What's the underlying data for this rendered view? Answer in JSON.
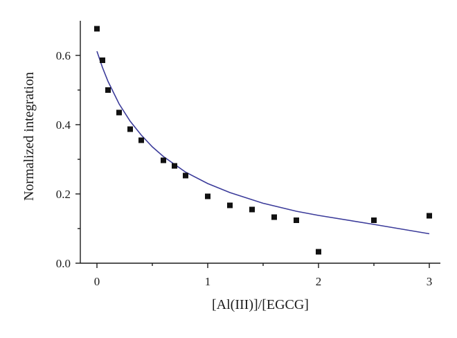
{
  "chart_data": {
    "type": "scatter",
    "title": "",
    "xlabel": "[Al(III)]/[EGCG]",
    "ylabel": "Normalized integration",
    "xlim": [
      -0.15,
      3.1
    ],
    "ylim": [
      0,
      0.7
    ],
    "x_ticks": [
      0,
      1,
      2,
      3
    ],
    "x_tick_labels": [
      "0",
      "1",
      "2",
      "3"
    ],
    "y_ticks": [
      0.0,
      0.2,
      0.4,
      0.6
    ],
    "y_tick_labels": [
      "0.0",
      "0.2",
      "0.4",
      "0.6"
    ],
    "x_minor_ticks": [
      0.5,
      1.5,
      2.5
    ],
    "y_minor_ticks": [
      0.1,
      0.3,
      0.5
    ],
    "grid": false,
    "legend": "none",
    "series": [
      {
        "kind": "points",
        "marker": "square",
        "color": "#111111",
        "x": [
          0,
          0.05,
          0.1,
          0.2,
          0.3,
          0.4,
          0.6,
          0.7,
          0.8,
          1.0,
          1.2,
          1.4,
          1.6,
          1.8,
          2.0,
          2.5,
          3.0
        ],
        "y": [
          0.677,
          0.586,
          0.5,
          0.435,
          0.387,
          0.355,
          0.297,
          0.281,
          0.253,
          0.193,
          0.167,
          0.155,
          0.133,
          0.124,
          0.033,
          0.124,
          0.137
        ]
      },
      {
        "kind": "fit",
        "color": "#3b3b9a",
        "x": [
          0,
          0.05,
          0.1,
          0.2,
          0.3,
          0.4,
          0.5,
          0.6,
          0.8,
          1.0,
          1.2,
          1.5,
          1.8,
          2.0,
          2.5,
          3.0
        ],
        "y": [
          0.612,
          0.565,
          0.525,
          0.46,
          0.41,
          0.37,
          0.336,
          0.308,
          0.263,
          0.23,
          0.204,
          0.173,
          0.15,
          0.138,
          0.112,
          0.085
        ]
      }
    ]
  }
}
